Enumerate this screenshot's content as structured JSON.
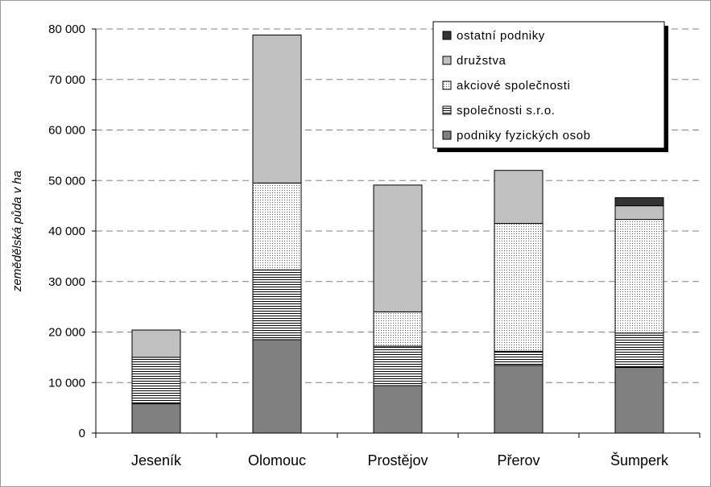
{
  "chart_data": {
    "type": "bar",
    "stacked": true,
    "categories": [
      "Jeseník",
      "Olomouc",
      "Prostějov",
      "Přerov",
      "Šumperk"
    ],
    "ylabel": "zemědělská půda v ha",
    "xlabel": "",
    "ylim": [
      0,
      80000
    ],
    "yticks": [
      0,
      10000,
      20000,
      30000,
      40000,
      50000,
      60000,
      70000,
      80000
    ],
    "ytick_labels": [
      "0",
      "10 000",
      "20 000",
      "30 000",
      "40 000",
      "50 000",
      "60 000",
      "70 000",
      "80 000"
    ],
    "grid": "horizontal dashed",
    "legend_position": "top-right",
    "series": [
      {
        "name": "podniky fyzických osob",
        "values": [
          5800,
          18500,
          9400,
          13400,
          13000
        ],
        "color": "#808080",
        "pattern": "solid"
      },
      {
        "name": "společnosti s.r.o.",
        "values": [
          9200,
          13800,
          7800,
          2800,
          6800
        ],
        "color": "#ffffff",
        "pattern": "horizontal-lines"
      },
      {
        "name": "akciové společnosti",
        "values": [
          0,
          17200,
          6800,
          25300,
          22500
        ],
        "color": "#ffffff",
        "pattern": "dots"
      },
      {
        "name": "družstva",
        "values": [
          5400,
          29300,
          25100,
          10500,
          2700
        ],
        "color": "#c0c0c0",
        "pattern": "solid"
      },
      {
        "name": "ostatní podniky",
        "values": [
          0,
          0,
          0,
          0,
          1600
        ],
        "color": "#333333",
        "pattern": "solid"
      }
    ]
  }
}
